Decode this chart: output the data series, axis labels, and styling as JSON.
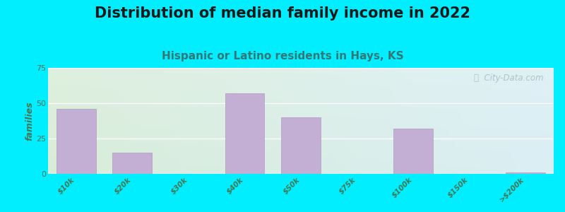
{
  "title": "Distribution of median family income in 2022",
  "subtitle": "Hispanic or Latino residents in Hays, KS",
  "ylabel": "families",
  "categories": [
    "$10k",
    "$20k",
    "$30k",
    "$40k",
    "$50k",
    "$75k",
    "$100k",
    "$150k",
    ">$200k"
  ],
  "values": [
    46,
    15,
    0,
    57,
    40,
    0,
    32,
    0,
    1
  ],
  "bar_color": "#c4afd4",
  "bar_edge_color": "#b09cc0",
  "ylim": [
    0,
    75
  ],
  "yticks": [
    0,
    25,
    50,
    75
  ],
  "background_outer": "#00eeff",
  "plot_bg_left_top": "#d8edd8",
  "plot_bg_right_bottom": "#e8f4f8",
  "title_fontsize": 15,
  "title_color": "#1a1a1a",
  "subtitle_fontsize": 11,
  "subtitle_color": "#337777",
  "tick_color": "#447755",
  "watermark_text": "ⓘ  City-Data.com",
  "watermark_color": "#aabbbb",
  "grid_color": "#ffffff",
  "ylabel_color": "#447755"
}
